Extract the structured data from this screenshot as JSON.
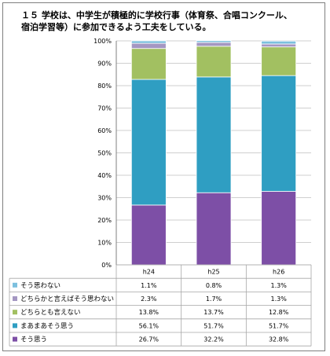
{
  "chart_data": {
    "type": "bar",
    "stacked": true,
    "title": "１５ 学校は、中学生が積極的に学校行事（体育祭、合唱コンクール、\n宿泊学習等）に参加できるよう工夫をしている。",
    "categories": [
      "h24",
      "h25",
      "h26"
    ],
    "ylim": [
      0,
      100
    ],
    "yticks": [
      "0%",
      "10%",
      "20%",
      "30%",
      "40%",
      "50%",
      "60%",
      "70%",
      "80%",
      "90%",
      "100%"
    ],
    "grid": true,
    "legend": "table-below",
    "series": [
      {
        "name": "そう思う",
        "values": [
          26.7,
          32.2,
          32.8
        ],
        "labels": [
          "26.7%",
          "32.2%",
          "32.8%"
        ],
        "color": "#7d4fa6"
      },
      {
        "name": "まあまあそう思う",
        "values": [
          56.1,
          51.7,
          51.7
        ],
        "labels": [
          "56.1%",
          "51.7%",
          "51.7%"
        ],
        "color": "#2f9ec2"
      },
      {
        "name": "どちらとも言えない",
        "values": [
          13.8,
          13.7,
          12.8
        ],
        "labels": [
          "13.8%",
          "13.7%",
          "12.8%"
        ],
        "color": "#a2c061"
      },
      {
        "name": "どちらかと言えばそう思わない",
        "values": [
          2.3,
          1.7,
          1.3
        ],
        "labels": [
          "2.3%",
          "1.7%",
          "1.3%"
        ],
        "color": "#a497c2"
      },
      {
        "name": "そう思わない",
        "values": [
          1.1,
          0.8,
          1.3
        ],
        "labels": [
          "1.1%",
          "0.8%",
          "1.3%"
        ],
        "color": "#7cc0de"
      }
    ]
  }
}
